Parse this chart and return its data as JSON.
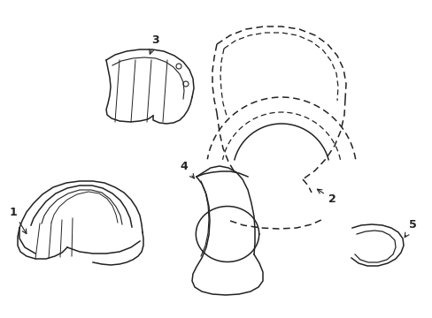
{
  "background_color": "#ffffff",
  "line_color": "#222222",
  "line_width": 1.1,
  "dash_pattern": [
    5,
    3
  ],
  "label_fontsize": 9
}
